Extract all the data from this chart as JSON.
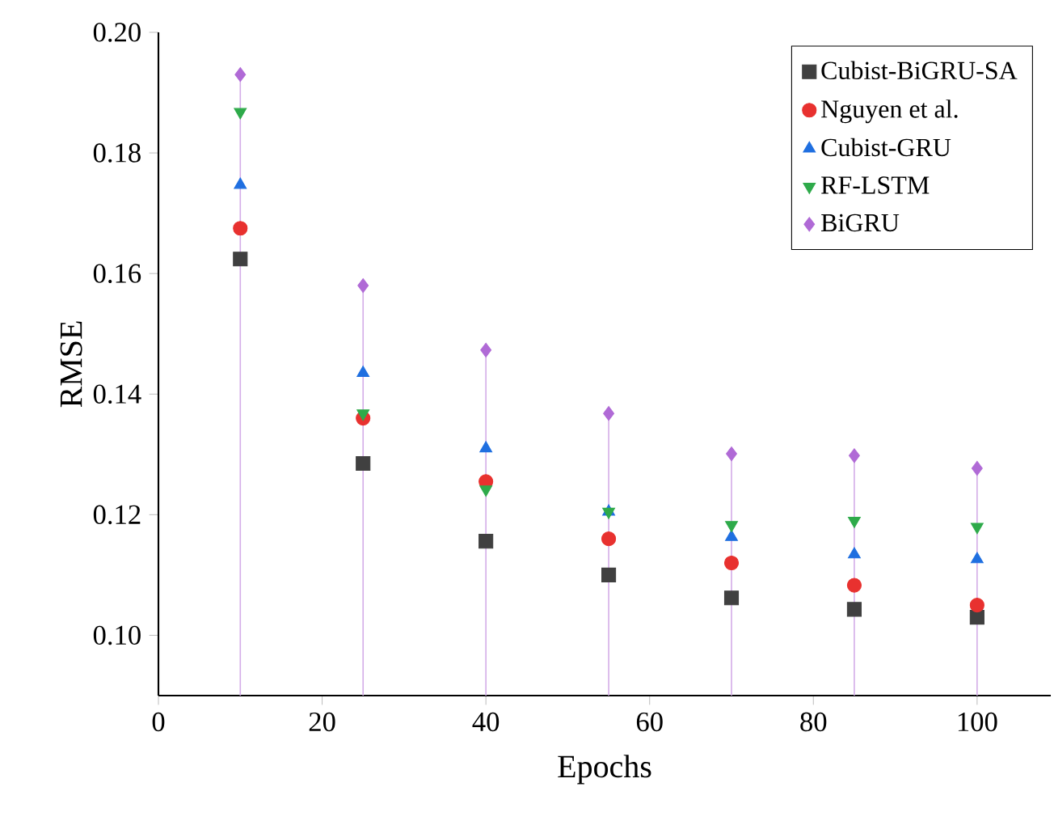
{
  "chart_data": {
    "type": "scatter",
    "xlabel": "Epochs",
    "ylabel": "RMSE",
    "x": [
      10,
      25,
      40,
      55,
      70,
      85,
      100
    ],
    "xlim": [
      0,
      109
    ],
    "ylim": [
      0.09,
      0.2
    ],
    "xticks": [
      0,
      20,
      40,
      60,
      80,
      100
    ],
    "yticks": [
      {
        "value": 0.1,
        "label": "0.10"
      },
      {
        "value": 0.12,
        "label": "0.12"
      },
      {
        "value": 0.14,
        "label": "0.14"
      },
      {
        "value": 0.16,
        "label": "0.16"
      },
      {
        "value": 0.18,
        "label": "0.18"
      },
      {
        "value": 0.2,
        "label": "0.20"
      }
    ],
    "legend": "top right",
    "grid": false,
    "series": [
      {
        "name": "Cubist-BiGRU-SA",
        "color": "#404040",
        "marker": "square",
        "values": [
          0.1624,
          0.1285,
          0.1156,
          0.11,
          0.1062,
          0.1043,
          0.103
        ]
      },
      {
        "name": "Nguyen et al.",
        "color": "#e8312f",
        "marker": "circle",
        "values": [
          0.1675,
          0.136,
          0.1255,
          0.116,
          0.112,
          0.1083,
          0.105
        ]
      },
      {
        "name": "Cubist-GRU",
        "color": "#1f6fe0",
        "marker": "triangle",
        "values": [
          0.1747,
          0.1435,
          0.131,
          0.1205,
          0.1163,
          0.1134,
          0.1126
        ]
      },
      {
        "name": "RF-LSTM",
        "color": "#2eaa4a",
        "marker": "triangle down",
        "values": [
          0.1868,
          0.1368,
          0.1242,
          0.1205,
          0.1183,
          0.119,
          0.118
        ]
      },
      {
        "name": "BiGRU",
        "color": "#b06ad6",
        "marker": "diamond",
        "type": "lollipop",
        "values": [
          0.193,
          0.158,
          0.1473,
          0.1368,
          0.1301,
          0.1298,
          0.1277
        ]
      }
    ]
  }
}
